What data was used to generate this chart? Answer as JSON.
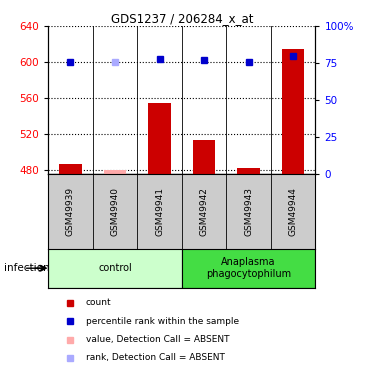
{
  "title": "GDS1237 / 206284_x_at",
  "samples": [
    "GSM49939",
    "GSM49940",
    "GSM49941",
    "GSM49942",
    "GSM49943",
    "GSM49944"
  ],
  "bar_values": [
    487,
    480,
    554,
    513,
    482,
    615
  ],
  "bar_colors": [
    "#cc0000",
    "#ffaaaa",
    "#cc0000",
    "#cc0000",
    "#cc0000",
    "#cc0000"
  ],
  "rank_values": [
    76,
    76,
    78,
    77,
    76,
    80
  ],
  "rank_colors": [
    "#0000cc",
    "#aaaaff",
    "#0000cc",
    "#0000cc",
    "#0000cc",
    "#0000cc"
  ],
  "ylim_left": [
    475,
    640
  ],
  "ylim_right": [
    0,
    100
  ],
  "yticks_left": [
    480,
    520,
    560,
    600,
    640
  ],
  "yticks_right": [
    0,
    25,
    50,
    75,
    100
  ],
  "ytick_right_labels": [
    "0",
    "25",
    "50",
    "75",
    "100%"
  ],
  "groups": [
    {
      "label": "control",
      "color": "#ccffcc",
      "start": 0,
      "end": 3
    },
    {
      "label": "Anaplasma\nphagocytophilum",
      "color": "#44dd44",
      "start": 3,
      "end": 6
    }
  ],
  "infection_label": "infection",
  "legend_items": [
    {
      "color": "#cc0000",
      "label": "count"
    },
    {
      "color": "#0000cc",
      "label": "percentile rank within the sample"
    },
    {
      "color": "#ffaaaa",
      "label": "value, Detection Call = ABSENT"
    },
    {
      "color": "#aaaaff",
      "label": "rank, Detection Call = ABSENT"
    }
  ],
  "grid_color": "black",
  "bar_width": 0.5,
  "base_value": 475
}
